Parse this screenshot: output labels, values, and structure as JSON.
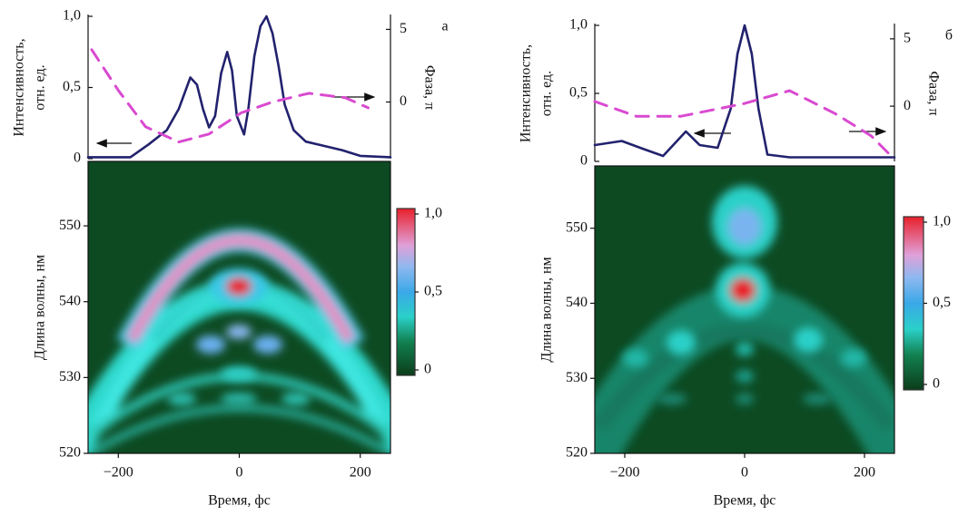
{
  "chart_data": [
    {
      "type": "line",
      "panel_label": "а",
      "ylabel": [
        "Интенсивность,",
        "отн. ед."
      ],
      "y2label": "Фаза, π",
      "xlim": [
        -250,
        250
      ],
      "ylim": [
        0,
        1
      ],
      "yticks": [
        0,
        {
          "value": 0.5,
          "label": "0,5"
        },
        {
          "value": 1,
          "label": "1,0"
        }
      ],
      "y2lim": [
        -3.9,
        5.9
      ],
      "y2ticks": [
        0,
        5
      ],
      "series": [
        {
          "color": "#22226e",
          "x": [
            -250,
            -200,
            -180,
            -150,
            -120,
            -100,
            -81,
            -70,
            -60,
            -50,
            -40,
            -30,
            -20,
            -12,
            -4,
            8,
            15,
            25,
            35,
            45,
            55,
            65,
            75,
            90,
            110,
            140,
            170,
            200,
            250
          ],
          "values": [
            0.01,
            0.01,
            0.01,
            0.1,
            0.2,
            0.35,
            0.57,
            0.52,
            0.35,
            0.22,
            0.3,
            0.6,
            0.75,
            0.62,
            0.3,
            0.17,
            0.35,
            0.72,
            0.93,
            1.0,
            0.88,
            0.65,
            0.38,
            0.2,
            0.12,
            0.09,
            0.06,
            0.02,
            0.01
          ]
        },
        {
          "color": "#d94ad0",
          "axis": "y2",
          "dash": true,
          "x": [
            -244,
            -200,
            -155,
            -100,
            -50,
            3,
            55,
            115,
            175,
            213
          ],
          "values": [
            3.6,
            0.8,
            -1.7,
            -2.75,
            -2.2,
            -0.75,
            0,
            0.6,
            0.3,
            -0.4
          ]
        }
      ]
    },
    {
      "type": "heatmap",
      "xlabel": "Время, фс",
      "ylabel": "Длина волны, нм",
      "xlim": [
        -250,
        250
      ],
      "ylim": [
        520,
        558.5
      ],
      "xticks": [
        {
          "value": -200,
          "label": "−200"
        },
        0,
        200
      ],
      "yticks": [
        520,
        530,
        540,
        550
      ],
      "clim": [
        0,
        1
      ],
      "cticks": [
        0,
        {
          "value": 0.5,
          "label": "0,5"
        },
        {
          "value": 1,
          "label": "1,0"
        }
      ]
    },
    {
      "type": "line",
      "panel_label": "б",
      "ylabel": [
        "Интенсивность,",
        "отн. ед."
      ],
      "y2label": "Фаза, π",
      "xlim": [
        -250,
        250
      ],
      "ylim": [
        0,
        1
      ],
      "yticks": [
        0,
        {
          "value": 0.5,
          "label": "0,5"
        },
        {
          "value": 1,
          "label": "1,0"
        }
      ],
      "y2lim": [
        -4.1,
        6.0
      ],
      "y2ticks": [
        0,
        5
      ],
      "series": [
        {
          "color": "#22226e",
          "x": [
            -250,
            -205,
            -168,
            -136,
            -98,
            -75,
            -45,
            -23,
            -12,
            0,
            12,
            23,
            38,
            75,
            196,
            250
          ],
          "values": [
            0.12,
            0.15,
            0.09,
            0.04,
            0.22,
            0.12,
            0.1,
            0.39,
            0.79,
            1.0,
            0.79,
            0.39,
            0.05,
            0.03,
            0.03,
            0.03
          ]
        },
        {
          "color": "#d94ad0",
          "axis": "y2",
          "dash": true,
          "x": [
            -250,
            -181,
            -106,
            -45,
            0,
            75,
            151,
            211,
            249
          ],
          "values": [
            0.35,
            -0.75,
            -0.75,
            -0.2,
            0.2,
            1.15,
            -0.55,
            -2.2,
            -3.9
          ]
        }
      ]
    },
    {
      "type": "heatmap",
      "xlabel": "Время, фс",
      "ylabel": "Длина волны, нм",
      "xlim": [
        -250,
        250
      ],
      "ylim": [
        520,
        558.3
      ],
      "xticks": [
        {
          "value": -200,
          "label": "−200"
        },
        0,
        200
      ],
      "yticks": [
        520,
        530,
        540,
        550
      ],
      "clim": [
        0,
        1
      ],
      "cticks": [
        0,
        {
          "value": 0.5,
          "label": "0,5"
        },
        {
          "value": 1,
          "label": "1,0"
        }
      ]
    }
  ]
}
